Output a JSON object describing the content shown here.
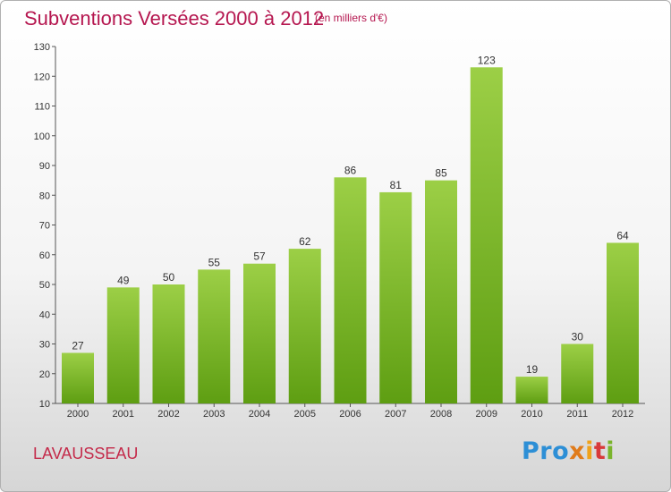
{
  "header": {
    "title": "Subventions Versées 2000 à 2012",
    "subtitle": "(en milliers d'€)"
  },
  "footer": {
    "town": "LAVAUSSEAU",
    "logo": [
      "Pro",
      "x",
      "i",
      "t",
      "i"
    ]
  },
  "colors": {
    "bar_light": "#9ccf46",
    "bar_dark": "#5e9e12",
    "title": "#b5164f"
  },
  "chart_data": {
    "type": "bar",
    "categories": [
      "2000",
      "2001",
      "2002",
      "2003",
      "2004",
      "2005",
      "2006",
      "2007",
      "2008",
      "2009",
      "2010",
      "2011",
      "2012"
    ],
    "values": [
      27,
      49,
      50,
      55,
      57,
      62,
      86,
      81,
      85,
      123,
      19,
      30,
      64
    ],
    "title": "Subventions Versées 2000 à 2012",
    "subtitle": "(en milliers d'€)",
    "ylim": [
      10,
      130
    ],
    "yticks": [
      10,
      20,
      30,
      40,
      50,
      60,
      70,
      80,
      90,
      100,
      110,
      120,
      130
    ],
    "grid": false,
    "data_labels": true
  }
}
